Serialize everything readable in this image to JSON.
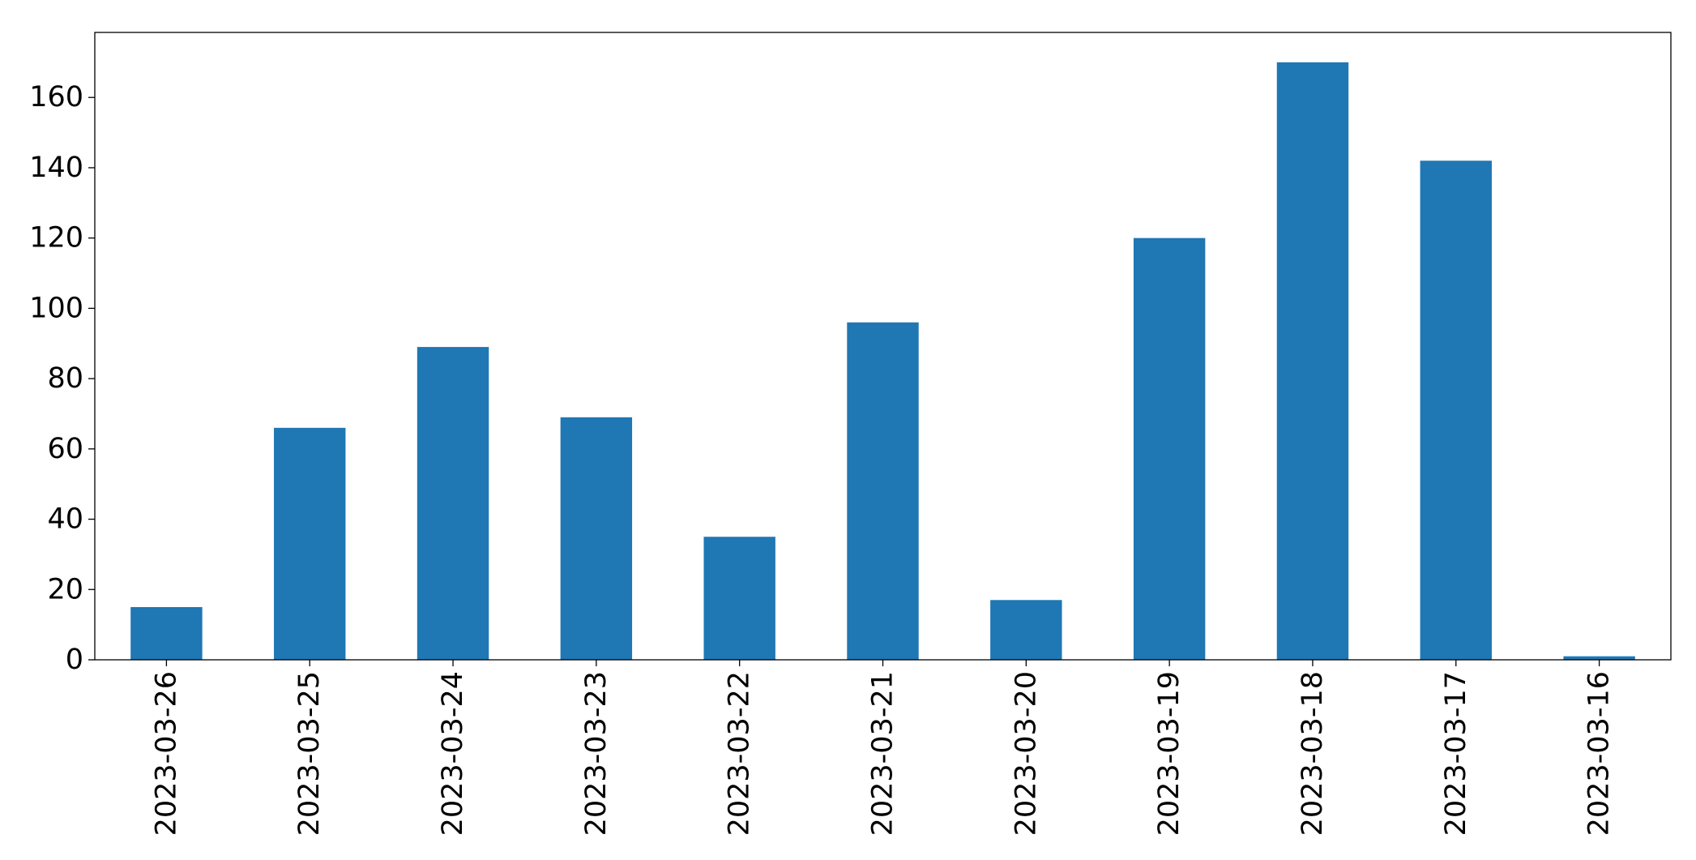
{
  "chart_data": {
    "type": "bar",
    "title": "",
    "xlabel": "",
    "ylabel": "",
    "categories": [
      "2023-03-26",
      "2023-03-25",
      "2023-03-24",
      "2023-03-23",
      "2023-03-22",
      "2023-03-21",
      "2023-03-20",
      "2023-03-19",
      "2023-03-18",
      "2023-03-17",
      "2023-03-16"
    ],
    "values": [
      15,
      66,
      89,
      69,
      35,
      96,
      17,
      120,
      170,
      142,
      1
    ],
    "ylim": [
      0,
      178.5
    ],
    "yticks": [
      "0",
      "20",
      "40",
      "60",
      "80",
      "100",
      "120",
      "140",
      "160"
    ],
    "grid": false,
    "legend": "none",
    "bar_color": "#1f77b4"
  }
}
